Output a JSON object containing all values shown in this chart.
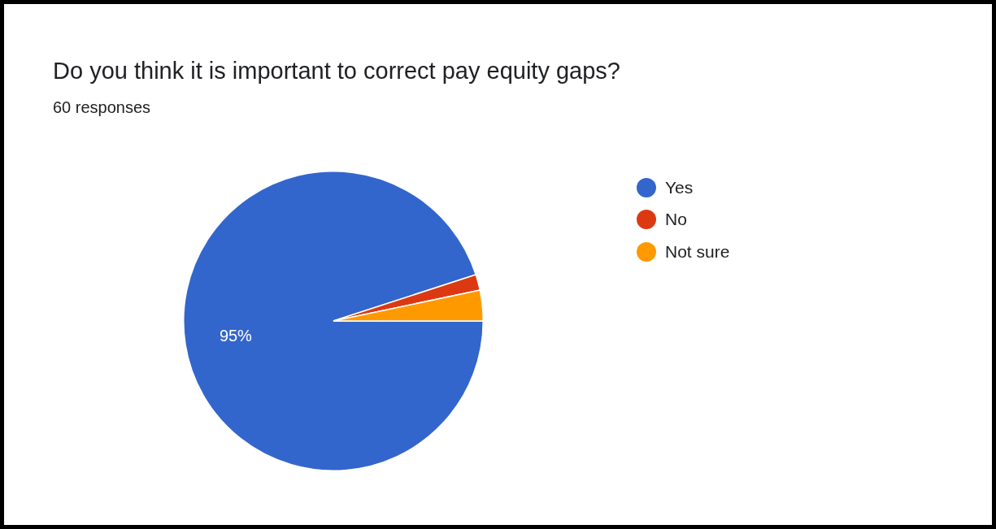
{
  "chart_data": {
    "type": "pie",
    "title": "Do you think it is important to correct pay equity gaps?",
    "subtitle": "60 responses",
    "categories": [
      "Yes",
      "No",
      "Not sure"
    ],
    "values": [
      95,
      1.7,
      3.3
    ],
    "colors": [
      "#3366cc",
      "#dc3912",
      "#ff9900"
    ],
    "value_labels": [
      "95%",
      null,
      null
    ],
    "legend": "right"
  }
}
